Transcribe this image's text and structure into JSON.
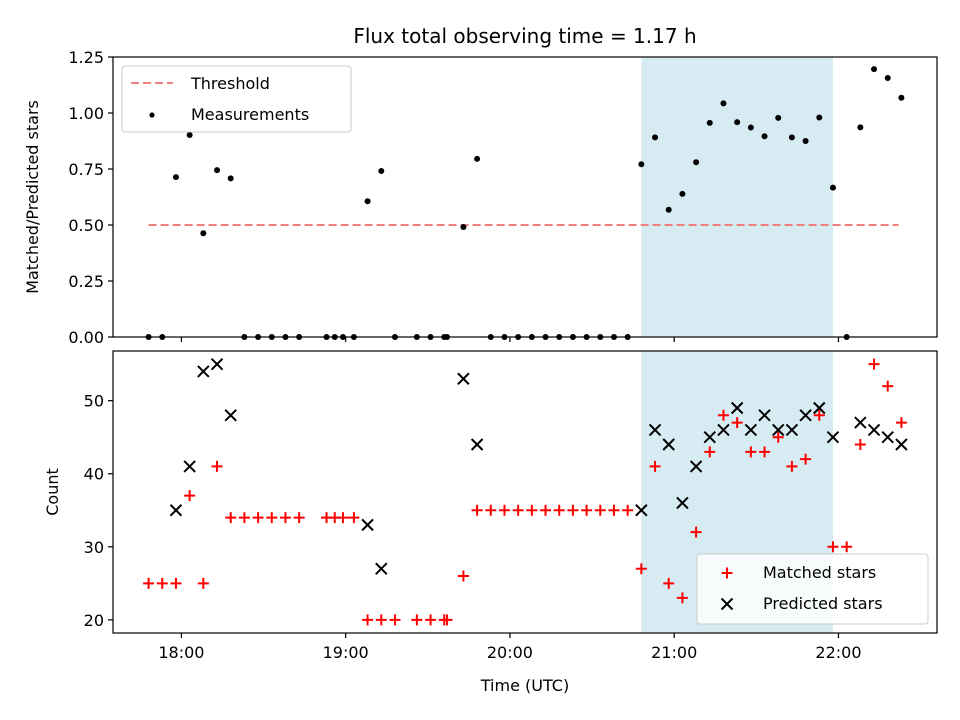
{
  "chart_data": [
    {
      "type": "scatter",
      "title": "Flux total observing time = 1.17 h",
      "xlabel": "",
      "ylabel": "Matched/Predicted stars",
      "xlim": [
        "17:35",
        "22:36"
      ],
      "ylim": [
        0,
        1.25
      ],
      "yticks": [
        "0.00",
        "0.25",
        "0.50",
        "0.75",
        "1.00",
        "1.25"
      ],
      "xticks": [
        "18:00",
        "19:00",
        "20:00",
        "21:00",
        "22:00"
      ],
      "shaded_span": {
        "from": "20:48",
        "to": "21:58",
        "color": "#add8e6"
      },
      "grid": false,
      "legend": {
        "position": "top-left",
        "items": [
          "Threshold",
          "Measurements"
        ]
      },
      "series": [
        {
          "name": "Threshold",
          "style": "dashed-line",
          "color": "#f08080",
          "points": [
            [
              "17:48",
              0.5
            ],
            [
              "22:22",
              0.5
            ]
          ]
        },
        {
          "name": "Measurements",
          "style": "dot",
          "color": "#000000",
          "points": [
            [
              "17:48",
              0.0
            ],
            [
              "17:53",
              0.0
            ],
            [
              "17:58",
              0.714
            ],
            [
              "18:03",
              0.902
            ],
            [
              "18:08",
              0.463
            ],
            [
              "18:13",
              0.745
            ],
            [
              "18:18",
              0.708
            ],
            [
              "18:23",
              0.0
            ],
            [
              "18:28",
              0.0
            ],
            [
              "18:33",
              0.0
            ],
            [
              "18:38",
              0.0
            ],
            [
              "18:43",
              0.0
            ],
            [
              "18:53",
              0.0
            ],
            [
              "18:56",
              0.0
            ],
            [
              "18:59",
              0.0
            ],
            [
              "19:03",
              0.0
            ],
            [
              "19:08",
              0.606
            ],
            [
              "19:13",
              0.741
            ],
            [
              "19:18",
              0.0
            ],
            [
              "19:26",
              0.0
            ],
            [
              "19:31",
              0.0
            ],
            [
              "19:36",
              0.0
            ],
            [
              "19:37",
              0.0
            ],
            [
              "19:43",
              0.491
            ],
            [
              "19:48",
              0.795
            ],
            [
              "19:53",
              0.0
            ],
            [
              "19:58",
              0.0
            ],
            [
              "20:03",
              0.0
            ],
            [
              "20:08",
              0.0
            ],
            [
              "20:13",
              0.0
            ],
            [
              "20:18",
              0.0
            ],
            [
              "20:23",
              0.0
            ],
            [
              "20:28",
              0.0
            ],
            [
              "20:33",
              0.0
            ],
            [
              "20:38",
              0.0
            ],
            [
              "20:43",
              0.0
            ],
            [
              "20:48",
              0.771
            ],
            [
              "20:53",
              0.891
            ],
            [
              "20:58",
              0.568
            ],
            [
              "21:03",
              0.639
            ],
            [
              "21:08",
              0.78
            ],
            [
              "21:13",
              0.956
            ],
            [
              "21:18",
              1.043
            ],
            [
              "21:23",
              0.959
            ],
            [
              "21:28",
              0.935
            ],
            [
              "21:33",
              0.896
            ],
            [
              "21:38",
              0.978
            ],
            [
              "21:43",
              0.891
            ],
            [
              "21:48",
              0.875
            ],
            [
              "21:53",
              0.98
            ],
            [
              "21:58",
              0.667
            ],
            [
              "22:03",
              0.0
            ],
            [
              "22:08",
              0.936
            ],
            [
              "22:13",
              1.196
            ],
            [
              "22:18",
              1.156
            ],
            [
              "22:23",
              1.068
            ]
          ]
        }
      ]
    },
    {
      "type": "scatter",
      "title": "",
      "xlabel": "Time (UTC)",
      "ylabel": "Count",
      "xlim": [
        "17:35",
        "22:36"
      ],
      "ylim": [
        18.2,
        56.8
      ],
      "yticks": [
        "20",
        "30",
        "40",
        "50"
      ],
      "xticks": [
        "18:00",
        "19:00",
        "20:00",
        "21:00",
        "22:00"
      ],
      "shaded_span": {
        "from": "20:48",
        "to": "21:58",
        "color": "#add8e6"
      },
      "grid": false,
      "legend": {
        "position": "bottom-right",
        "items": [
          "Matched stars",
          "Predicted stars"
        ]
      },
      "series": [
        {
          "name": "Matched stars",
          "style": "plus",
          "color": "#ff0000",
          "points": [
            [
              "17:48",
              25
            ],
            [
              "17:53",
              25
            ],
            [
              "17:58",
              25
            ],
            [
              "18:03",
              37
            ],
            [
              "18:08",
              25
            ],
            [
              "18:13",
              41
            ],
            [
              "18:18",
              34
            ],
            [
              "18:23",
              34
            ],
            [
              "18:28",
              34
            ],
            [
              "18:33",
              34
            ],
            [
              "18:38",
              34
            ],
            [
              "18:43",
              34
            ],
            [
              "18:53",
              34
            ],
            [
              "18:56",
              34
            ],
            [
              "18:59",
              34
            ],
            [
              "19:03",
              34
            ],
            [
              "19:08",
              20
            ],
            [
              "19:13",
              20
            ],
            [
              "19:18",
              20
            ],
            [
              "19:26",
              20
            ],
            [
              "19:31",
              20
            ],
            [
              "19:36",
              20
            ],
            [
              "19:37",
              20
            ],
            [
              "19:43",
              26
            ],
            [
              "19:48",
              35
            ],
            [
              "19:53",
              35
            ],
            [
              "19:58",
              35
            ],
            [
              "20:03",
              35
            ],
            [
              "20:08",
              35
            ],
            [
              "20:13",
              35
            ],
            [
              "20:18",
              35
            ],
            [
              "20:23",
              35
            ],
            [
              "20:28",
              35
            ],
            [
              "20:33",
              35
            ],
            [
              "20:38",
              35
            ],
            [
              "20:43",
              35
            ],
            [
              "20:48",
              27
            ],
            [
              "20:53",
              41
            ],
            [
              "20:58",
              25
            ],
            [
              "21:03",
              23
            ],
            [
              "21:08",
              32
            ],
            [
              "21:13",
              43
            ],
            [
              "21:18",
              48
            ],
            [
              "21:23",
              47
            ],
            [
              "21:28",
              43
            ],
            [
              "21:33",
              43
            ],
            [
              "21:38",
              45
            ],
            [
              "21:43",
              41
            ],
            [
              "21:48",
              42
            ],
            [
              "21:53",
              48
            ],
            [
              "21:58",
              30
            ],
            [
              "22:03",
              30
            ],
            [
              "22:08",
              44
            ],
            [
              "22:13",
              55
            ],
            [
              "22:18",
              52
            ],
            [
              "22:23",
              47
            ]
          ]
        },
        {
          "name": "Predicted stars",
          "style": "x",
          "color": "#000000",
          "points": [
            [
              "17:58",
              35
            ],
            [
              "18:03",
              41
            ],
            [
              "18:08",
              54
            ],
            [
              "18:13",
              55
            ],
            [
              "18:18",
              48
            ],
            [
              "19:08",
              33
            ],
            [
              "19:13",
              27
            ],
            [
              "19:43",
              53
            ],
            [
              "19:48",
              44
            ],
            [
              "20:48",
              35
            ],
            [
              "20:53",
              46
            ],
            [
              "20:58",
              44
            ],
            [
              "21:03",
              36
            ],
            [
              "21:08",
              41
            ],
            [
              "21:13",
              45
            ],
            [
              "21:18",
              46
            ],
            [
              "21:23",
              49
            ],
            [
              "21:28",
              46
            ],
            [
              "21:33",
              48
            ],
            [
              "21:38",
              46
            ],
            [
              "21:43",
              46
            ],
            [
              "21:48",
              48
            ],
            [
              "21:53",
              49
            ],
            [
              "21:58",
              45
            ],
            [
              "22:08",
              47
            ],
            [
              "22:13",
              46
            ],
            [
              "22:18",
              45
            ],
            [
              "22:23",
              44
            ]
          ]
        }
      ]
    }
  ]
}
